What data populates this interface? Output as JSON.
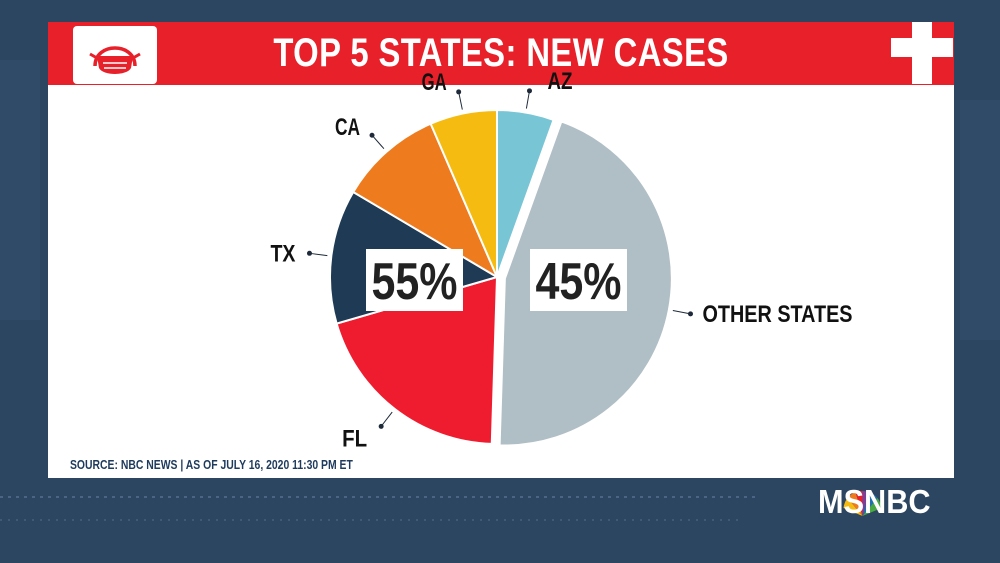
{
  "chart_data": {
    "type": "pie",
    "title": "TOP 5 STATES: NEW CASES",
    "slices": [
      {
        "label": "AZ",
        "percent": 5.5,
        "color": "#78c5d6"
      },
      {
        "label": "OTHER STATES",
        "percent": 45,
        "color": "#b0bec5"
      },
      {
        "label": "FL",
        "percent": 20,
        "color": "#ee1c2e"
      },
      {
        "label": "TX",
        "percent": 13,
        "color": "#1e3a54"
      },
      {
        "label": "CA",
        "percent": 10,
        "color": "#ee7b1e"
      },
      {
        "label": "GA",
        "percent": 6.5,
        "color": "#f5bb11"
      }
    ],
    "group_labels": {
      "top5": "55%",
      "others": "45%"
    }
  },
  "footer": {
    "source": "SOURCE: NBC NEWS | AS OF JULY 16, 2020 11:30 PM ET"
  },
  "branding": {
    "network": "MSNBC"
  },
  "icons": [
    "face-mask-icon",
    "medical-cross-icon",
    "peacock-logo-icon"
  ],
  "colors": {
    "banner": "#e8202a",
    "background": "#2c4560"
  }
}
